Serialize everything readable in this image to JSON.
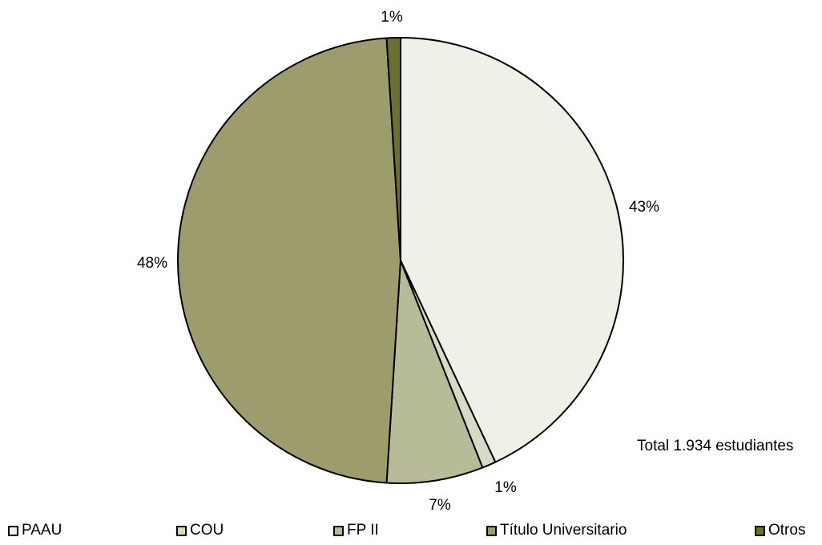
{
  "chart_data": {
    "type": "pie",
    "categories": [
      "PAAU",
      "COU",
      "FP II",
      "Título Universitario",
      "Otros"
    ],
    "values": [
      43,
      1,
      7,
      48,
      1
    ],
    "labels": [
      "43%",
      "1%",
      "7%",
      "48%",
      "1%"
    ],
    "colors": [
      "#f0f0e8",
      "#d8d9c6",
      "#b8bb98",
      "#9c9c6c",
      "#6b7030"
    ],
    "legend_position": "bottom",
    "start_angle": "top",
    "direction": "clockwise",
    "note": "Total 1.934 estudiantes"
  }
}
